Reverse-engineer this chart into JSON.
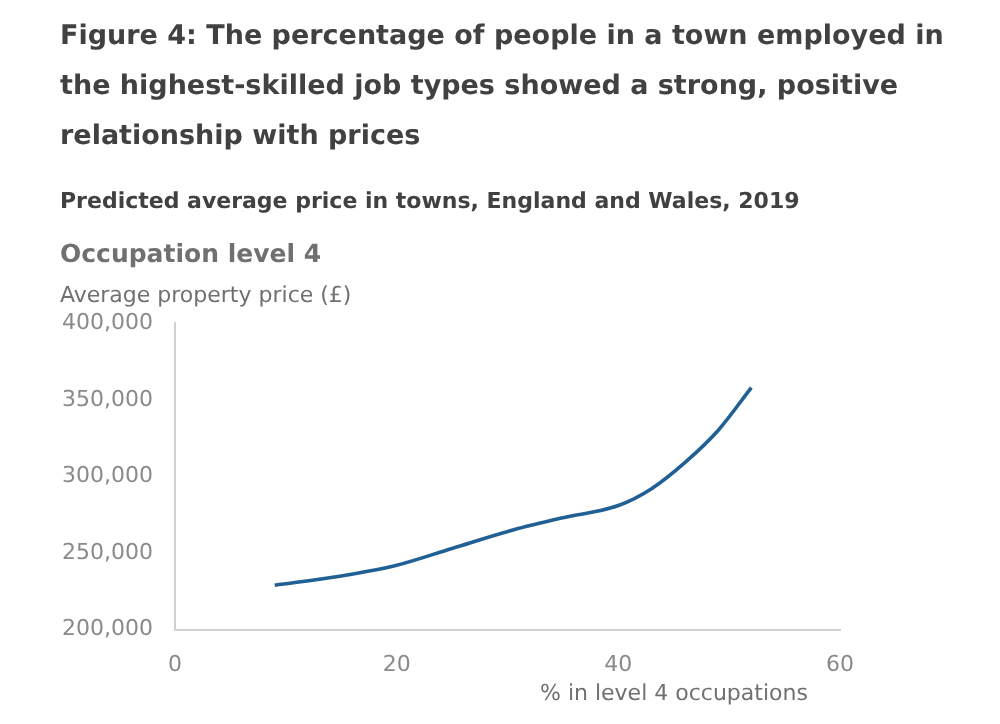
{
  "chart_data": {
    "type": "line",
    "title": "Figure 4: The percentage of people in a town employed in the highest-skilled job types showed a strong, positive relationship with prices",
    "subtitle": "Predicted average price in towns, England and Wales, 2019",
    "annotations": [
      "Occupation level 4"
    ],
    "ylabel": "Average property price (£)",
    "xlabel": "% in level 4 occupations",
    "series": [
      {
        "color": "#206095",
        "x": [
          9,
          15,
          20,
          25,
          30.5,
          35,
          40,
          43,
          46,
          49,
          52
        ],
        "values": [
          229000,
          235000,
          242000,
          253000,
          265000,
          273000,
          281000,
          292000,
          309000,
          330000,
          358000
        ]
      }
    ],
    "xlim": [
      0,
      60
    ],
    "xticks": [
      0,
      20,
      40,
      60
    ],
    "ylim": [
      200000,
      400000
    ],
    "yticks": [
      {
        "value": 200000,
        "label": "200,000"
      },
      {
        "value": 250000,
        "label": "250,000"
      },
      {
        "value": 300000,
        "label": "300,000"
      },
      {
        "value": 350000,
        "label": "350,000"
      },
      {
        "value": 400000,
        "label": "400,000"
      }
    ],
    "grid": false,
    "legend": false,
    "marker": "none",
    "line_style": "solid"
  }
}
